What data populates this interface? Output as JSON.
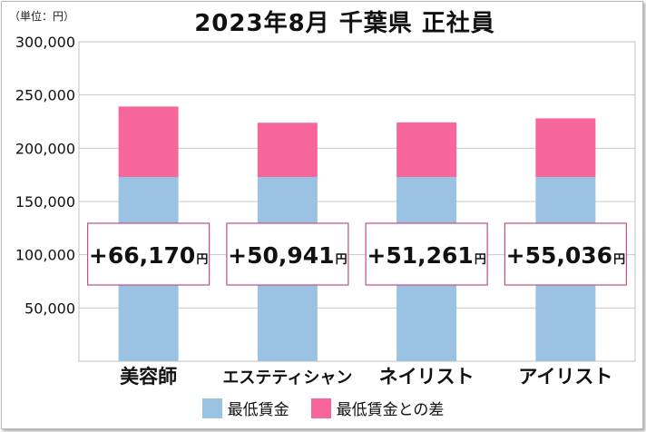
{
  "chart_data": {
    "type": "bar",
    "stacked": true,
    "unit_label": "（単位：円）",
    "title": "2023年8月 千葉県 正社員",
    "categories": [
      "美容師",
      "エステティシャン",
      "ネイリスト",
      "アイリスト"
    ],
    "series": [
      {
        "name": "最低賃金",
        "color": "#9ac3e3",
        "values": [
          173000,
          173000,
          173000,
          173000
        ]
      },
      {
        "name": "最低賃金との差",
        "color": "#f7669b",
        "values": [
          66170,
          50941,
          51261,
          55036
        ]
      }
    ],
    "annotations": [
      "+66,170",
      "+50,941",
      "+51,261",
      "+55,036"
    ],
    "annotation_suffix": "円",
    "ylim": [
      0,
      300000
    ],
    "yticks": [
      50000,
      100000,
      150000,
      200000,
      250000,
      300000
    ],
    "ytick_labels": [
      "50,000",
      "100,000",
      "150,000",
      "200,000",
      "250,000",
      "300,000"
    ],
    "grid": true,
    "legend_position": "bottom"
  }
}
